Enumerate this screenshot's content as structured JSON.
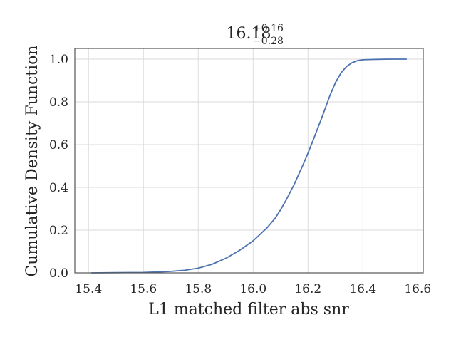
{
  "chart_data": {
    "type": "line",
    "title": {
      "value": "16.18",
      "upper": "+0.16",
      "lower": "−0.28"
    },
    "xlabel": "L1 matched filter abs snr",
    "ylabel": "Cumulative Density Function",
    "xlim": [
      15.35,
      16.62
    ],
    "ylim": [
      0.0,
      1.05
    ],
    "xticks": [
      15.4,
      15.6,
      15.8,
      16.0,
      16.2,
      16.4,
      16.6
    ],
    "xtick_labels": [
      "15.4",
      "15.6",
      "15.8",
      "16.0",
      "16.2",
      "16.4",
      "16.6"
    ],
    "yticks": [
      0.0,
      0.2,
      0.4,
      0.6,
      0.8,
      1.0
    ],
    "ytick_labels": [
      "0.0",
      "0.2",
      "0.4",
      "0.6",
      "0.8",
      "1.0"
    ],
    "grid": true,
    "line_color": "#4c72b0",
    "series": [
      {
        "x": [
          15.41,
          15.5,
          15.6,
          15.65,
          15.7,
          15.75,
          15.8,
          15.85,
          15.9,
          15.95,
          16.0,
          16.05,
          16.08,
          16.1,
          16.12,
          16.15,
          16.18,
          16.2,
          16.22,
          16.25,
          16.28,
          16.3,
          16.32,
          16.34,
          16.36,
          16.38,
          16.4,
          16.42,
          16.45,
          16.5,
          16.56
        ],
        "y": [
          0.0,
          0.001,
          0.002,
          0.004,
          0.007,
          0.012,
          0.022,
          0.04,
          0.068,
          0.105,
          0.15,
          0.21,
          0.255,
          0.295,
          0.34,
          0.415,
          0.5,
          0.56,
          0.625,
          0.725,
          0.83,
          0.89,
          0.935,
          0.965,
          0.983,
          0.993,
          0.997,
          0.998,
          0.999,
          1.0,
          1.0
        ]
      }
    ]
  }
}
